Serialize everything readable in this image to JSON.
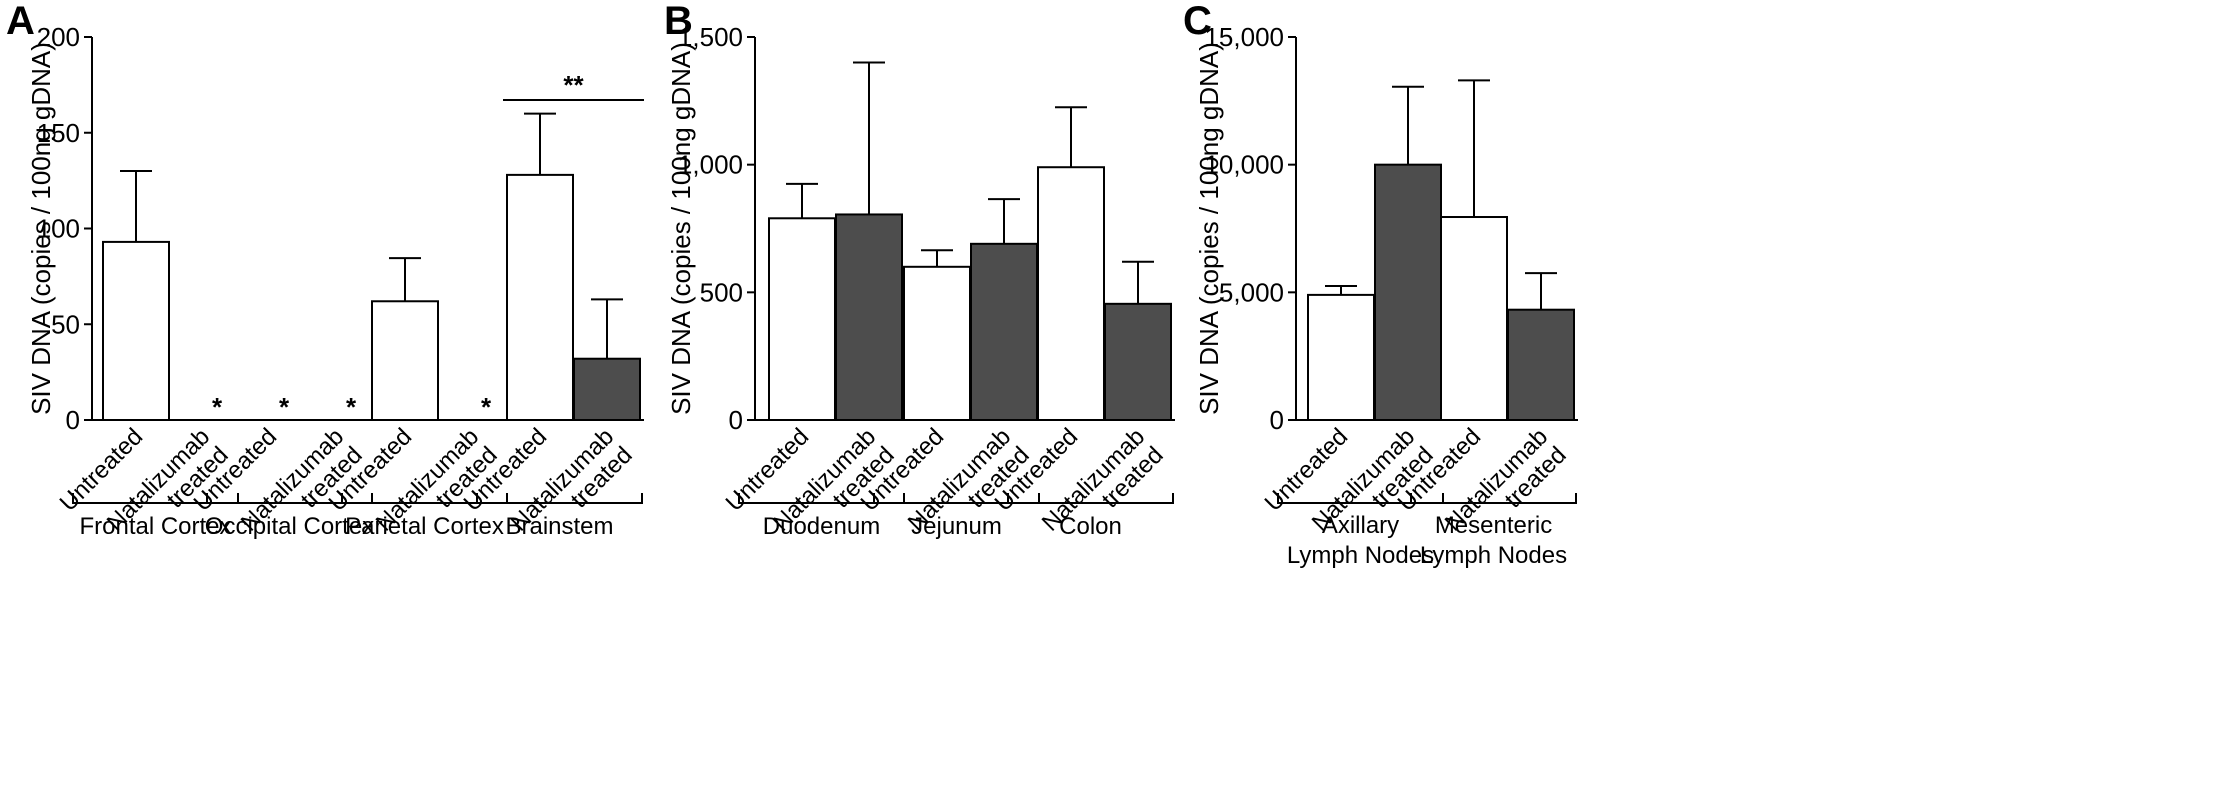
{
  "chart_data": [
    {
      "panel": "A",
      "type": "bar",
      "ylabel": "SIV DNA (copies / 100ng gDNA)",
      "ylim": [
        0,
        200
      ],
      "yticks": [
        "0",
        "50",
        "100",
        "150",
        "200"
      ],
      "ytick_values": [
        0,
        50,
        100,
        150,
        200
      ],
      "groups": [
        {
          "label": "Frontal Cortex",
          "bars": [
            {
              "category": "Untreated",
              "value": 93,
              "error": 37,
              "fill": "#ffffff",
              "star": ""
            },
            {
              "category": "Natalizumab treated",
              "value": 0,
              "error": 0,
              "fill": "#4d4d4d",
              "star": "*"
            }
          ]
        },
        {
          "label": "Occipital Cortex",
          "bars": [
            {
              "category": "Untreated",
              "value": 0,
              "error": 0,
              "fill": "#ffffff",
              "star": "*"
            },
            {
              "category": "Natalizumab treated",
              "value": 0,
              "error": 0,
              "fill": "#4d4d4d",
              "star": "*"
            }
          ]
        },
        {
          "label": "Parietal Cortex",
          "bars": [
            {
              "category": "Untreated",
              "value": 62,
              "error": 22.5,
              "fill": "#ffffff",
              "star": ""
            },
            {
              "category": "Natalizumab treated",
              "value": 0,
              "error": 0,
              "fill": "#4d4d4d",
              "star": "*"
            }
          ]
        },
        {
          "label": "Brainstem",
          "bars": [
            {
              "category": "Untreated",
              "value": 128,
              "error": 32,
              "fill": "#ffffff",
              "star": ""
            },
            {
              "category": "Natalizumab treated",
              "value": 32,
              "error": 31,
              "fill": "#4d4d4d",
              "star": ""
            }
          ]
        }
      ],
      "significance": [
        {
          "group": 3,
          "label": "**"
        }
      ]
    },
    {
      "panel": "B",
      "type": "bar",
      "ylabel": "SIV DNA (copies / 100ng gDNA)",
      "ylim": [
        0,
        1500
      ],
      "yticks": [
        "0",
        "500",
        "1,000",
        "1,500"
      ],
      "ytick_values": [
        0,
        500,
        1000,
        1500
      ],
      "groups": [
        {
          "label": "Duodenum",
          "bars": [
            {
              "category": "Untreated",
              "value": 790,
              "error": 135,
              "fill": "#ffffff",
              "star": ""
            },
            {
              "category": "Natalizumab treated",
              "value": 805,
              "error": 595,
              "fill": "#4d4d4d",
              "star": ""
            }
          ]
        },
        {
          "label": "Jejunum",
          "bars": [
            {
              "category": "Untreated",
              "value": 600,
              "error": 65,
              "fill": "#ffffff",
              "star": ""
            },
            {
              "category": "Natalizumab treated",
              "value": 690,
              "error": 175,
              "fill": "#4d4d4d",
              "star": ""
            }
          ]
        },
        {
          "label": "Colon",
          "bars": [
            {
              "category": "Untreated",
              "value": 990,
              "error": 235,
              "fill": "#ffffff",
              "star": ""
            },
            {
              "category": "Natalizumab treated",
              "value": 455,
              "error": 165,
              "fill": "#4d4d4d",
              "star": ""
            }
          ]
        }
      ],
      "significance": []
    },
    {
      "panel": "C",
      "type": "bar",
      "ylabel": "SIV DNA (copies / 100ng gDNA)",
      "ylim": [
        0,
        15000
      ],
      "yticks": [
        "0",
        "5,000",
        "10,000",
        "15,000"
      ],
      "ytick_values": [
        0,
        5000,
        10000,
        15000
      ],
      "groups": [
        {
          "label": "Axillary Lymph Nodes",
          "label_lines": [
            "Axillary",
            "Lymph Nodes"
          ],
          "bars": [
            {
              "category": "Untreated",
              "value": 4900,
              "error": 350,
              "fill": "#ffffff",
              "star": ""
            },
            {
              "category": "Natalizumab treated",
              "value": 10000,
              "error": 3050,
              "fill": "#4d4d4d",
              "star": ""
            }
          ]
        },
        {
          "label": "Mesenteric Lymph Nodes",
          "label_lines": [
            "Mesenteric",
            "Lymph Nodes"
          ],
          "bars": [
            {
              "category": "Untreated",
              "value": 7950,
              "error": 5350,
              "fill": "#ffffff",
              "star": ""
            },
            {
              "category": "Natalizumab treated",
              "value": 4320,
              "error": 1430,
              "fill": "#4d4d4d",
              "star": ""
            }
          ]
        }
      ],
      "significance": []
    }
  ]
}
